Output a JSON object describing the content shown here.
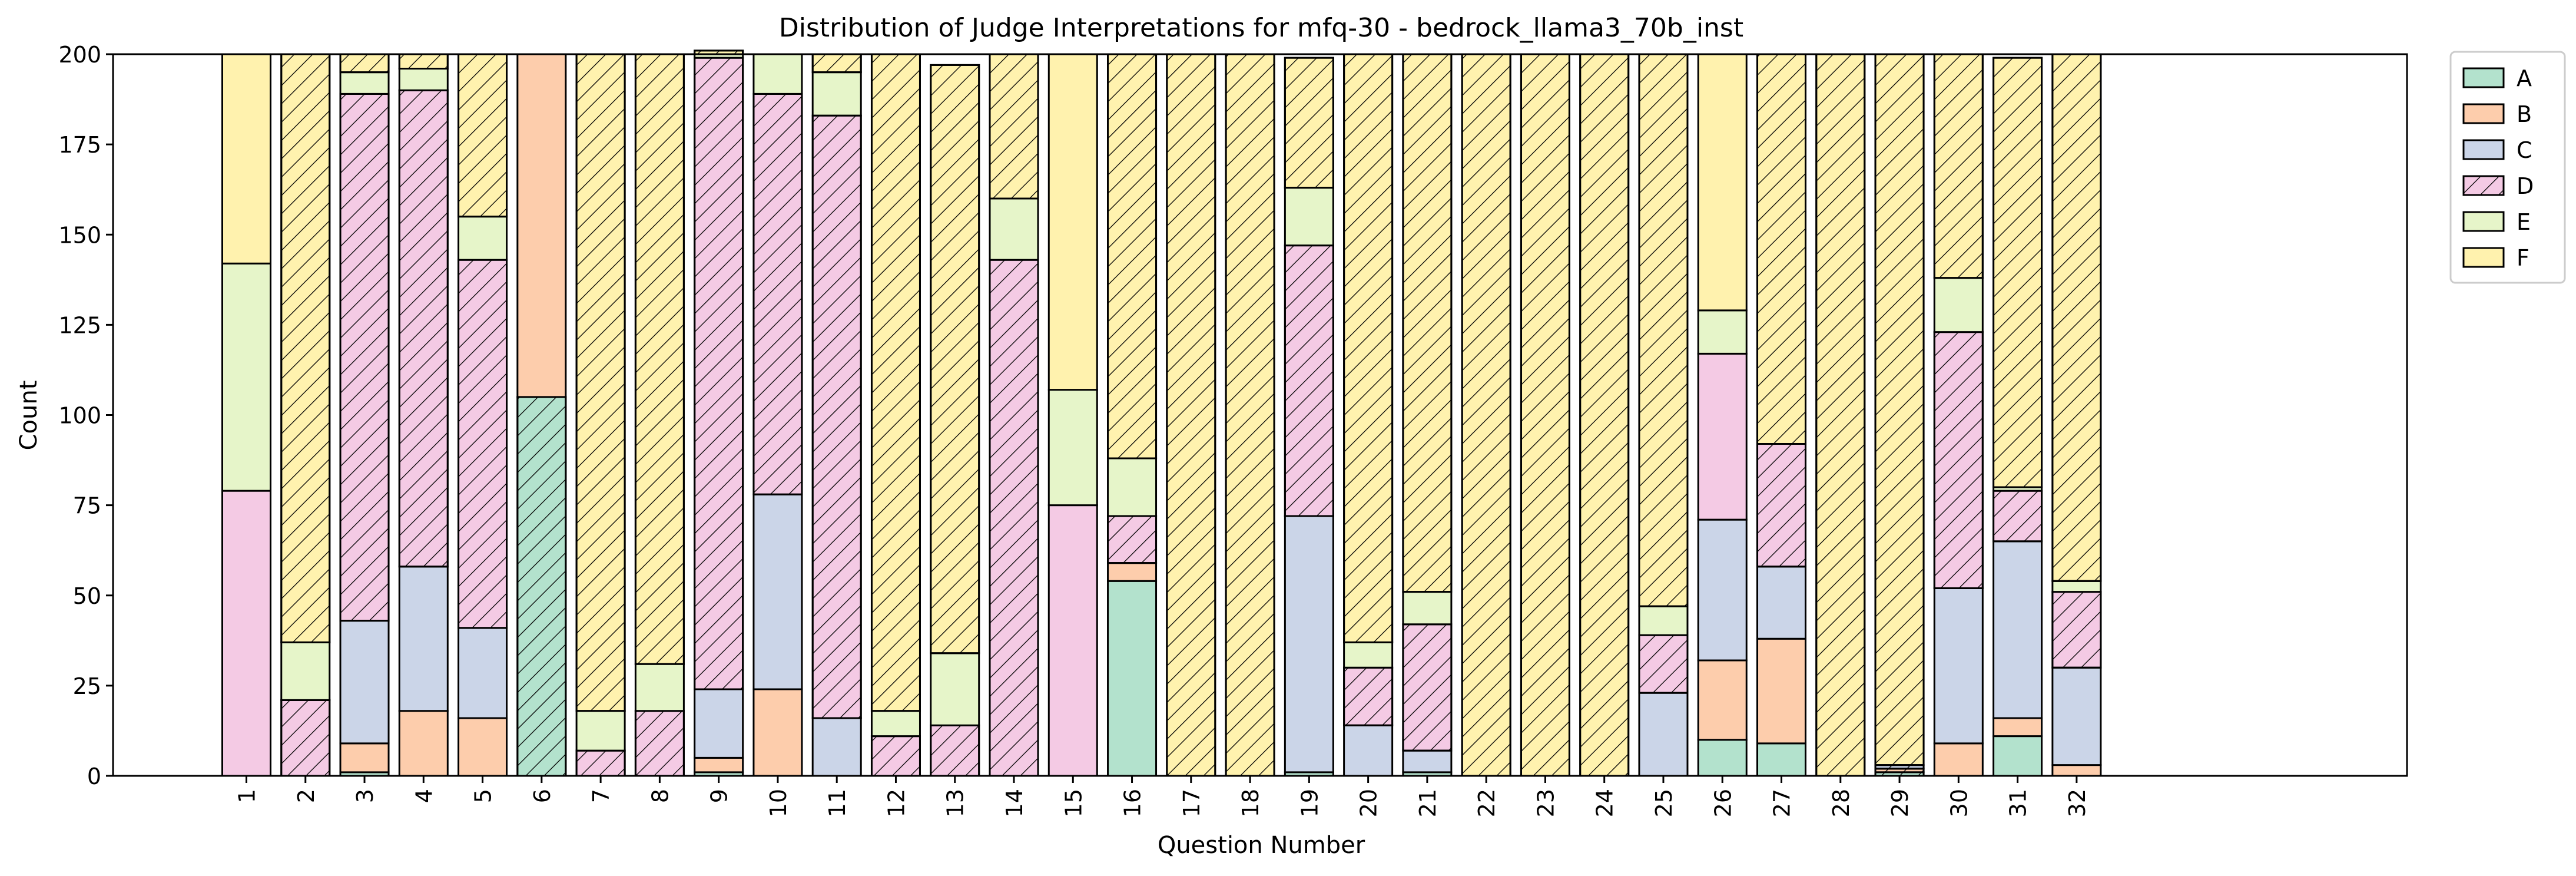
{
  "chart_data": {
    "type": "bar",
    "stacked": true,
    "title": "Distribution of Judge Interpretations for mfq-30 - bedrock_llama3_70b_inst",
    "xlabel": "Question Number",
    "ylabel": "Count",
    "ylim": [
      0,
      200
    ],
    "yticks": [
      0,
      25,
      50,
      75,
      100,
      125,
      150,
      175,
      200
    ],
    "categories": [
      "1",
      "2",
      "3",
      "4",
      "5",
      "6",
      "7",
      "8",
      "9",
      "10",
      "11",
      "12",
      "13",
      "14",
      "15",
      "16",
      "17",
      "18",
      "19",
      "20",
      "21",
      "22",
      "23",
      "24",
      "25",
      "26",
      "27",
      "28",
      "29",
      "30",
      "31",
      "32"
    ],
    "legend_position": "upper right, outside plot",
    "series": [
      {
        "name": "A",
        "color": "#b3e2cd",
        "values": [
          0,
          0,
          1,
          0,
          0,
          105,
          0,
          0,
          1,
          0,
          0,
          0,
          0,
          0,
          0,
          54,
          0,
          0,
          1,
          0,
          1,
          0,
          0,
          0,
          0,
          10,
          9,
          0,
          1,
          0,
          11,
          0
        ]
      },
      {
        "name": "B",
        "color": "#fdcdac",
        "values": [
          0,
          0,
          8,
          18,
          16,
          95,
          0,
          0,
          4,
          24,
          0,
          0,
          0,
          0,
          0,
          5,
          0,
          0,
          0,
          0,
          0,
          0,
          0,
          0,
          0,
          22,
          29,
          0,
          1,
          9,
          5,
          3
        ]
      },
      {
        "name": "C",
        "color": "#cbd5e8",
        "values": [
          0,
          0,
          34,
          40,
          25,
          0,
          0,
          0,
          19,
          54,
          16,
          0,
          0,
          0,
          0,
          0,
          0,
          0,
          71,
          14,
          6,
          0,
          0,
          0,
          23,
          39,
          20,
          0,
          1,
          43,
          49,
          27
        ]
      },
      {
        "name": "D",
        "color": "#f4cae4",
        "values": [
          79,
          21,
          146,
          132,
          102,
          0,
          7,
          18,
          175,
          111,
          167,
          11,
          14,
          143,
          75,
          13,
          0,
          0,
          75,
          16,
          35,
          0,
          0,
          0,
          16,
          46,
          34,
          0,
          0,
          71,
          14,
          21
        ]
      },
      {
        "name": "E",
        "color": "#e6f5c9",
        "values": [
          63,
          16,
          6,
          6,
          12,
          0,
          11,
          13,
          1,
          11,
          12,
          7,
          20,
          17,
          32,
          16,
          0,
          0,
          16,
          7,
          9,
          0,
          0,
          0,
          8,
          12,
          0,
          0,
          0,
          15,
          1,
          3
        ]
      },
      {
        "name": "F",
        "color": "#fff2ae",
        "values": [
          58,
          163,
          5,
          4,
          45,
          0,
          182,
          169,
          1,
          0,
          5,
          182,
          163,
          40,
          93,
          112,
          200,
          200,
          36,
          163,
          149,
          200,
          200,
          200,
          153,
          71,
          108,
          200,
          197,
          62,
          119,
          146
        ]
      }
    ],
    "hatched": [
      [
        false,
        true,
        true,
        true,
        true,
        false,
        true,
        true,
        true,
        true,
        true,
        true,
        true,
        true,
        false,
        true,
        true,
        true,
        true,
        true,
        true,
        true,
        true,
        true,
        true,
        false,
        true,
        true,
        true,
        true,
        true,
        true
      ],
      [
        false,
        true,
        true,
        true,
        true,
        false,
        true,
        true,
        true,
        true,
        true,
        true,
        true,
        true,
        false,
        true,
        true,
        true,
        true,
        true,
        true,
        true,
        true,
        true,
        true,
        false,
        true,
        true,
        true,
        true,
        true,
        true
      ]
    ]
  }
}
